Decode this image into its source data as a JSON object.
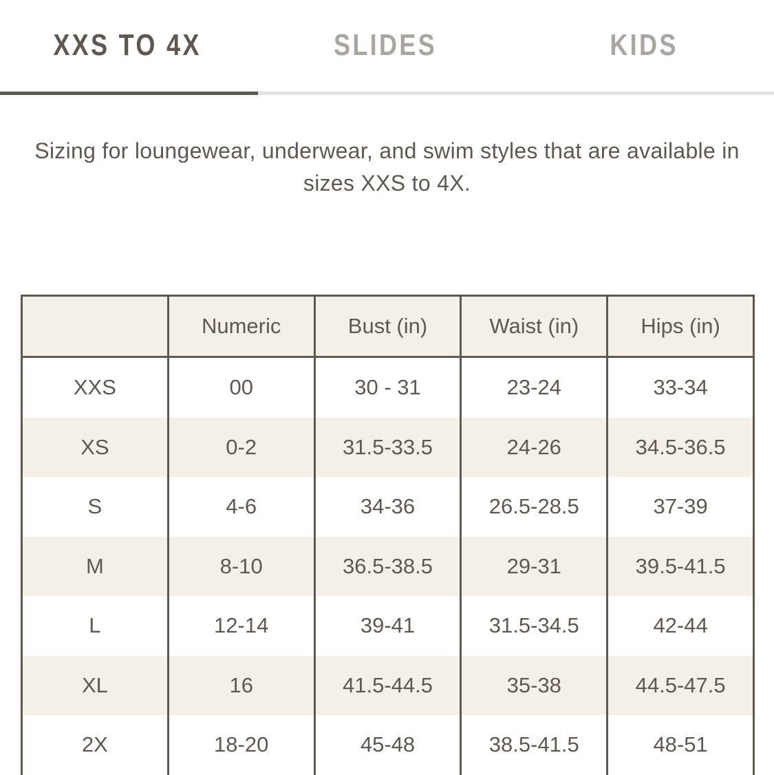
{
  "tabs": [
    {
      "label": "XXS TO 4X",
      "active": true
    },
    {
      "label": "SLIDES",
      "active": false
    },
    {
      "label": "KIDS",
      "active": false
    }
  ],
  "description": "Sizing for loungewear, underwear, and swim styles that are available in sizes XXS to 4X.",
  "table": {
    "headers": [
      "",
      "Numeric",
      "Bust (in)",
      "Waist (in)",
      "Hips (in)"
    ],
    "rows": [
      [
        "XXS",
        "00",
        "30 - 31",
        "23-24",
        "33-34"
      ],
      [
        "XS",
        "0-2",
        "31.5-33.5",
        "24-26",
        "34.5-36.5"
      ],
      [
        "S",
        "4-6",
        "34-36",
        "26.5-28.5",
        "37-39"
      ],
      [
        "M",
        "8-10",
        "36.5-38.5",
        "29-31",
        "39.5-41.5"
      ],
      [
        "L",
        "12-14",
        "39-41",
        "31.5-34.5",
        "42-44"
      ],
      [
        "XL",
        "16",
        "41.5-44.5",
        "35-38",
        "44.5-47.5"
      ],
      [
        "2X",
        "18-20",
        "45-48",
        "38.5-41.5",
        "48-51"
      ]
    ]
  },
  "colors": {
    "text": "#5e5850",
    "inactive_tab": "#a9a6a2",
    "stripe": "#f4f0e8",
    "track": "#e3e3e3"
  }
}
